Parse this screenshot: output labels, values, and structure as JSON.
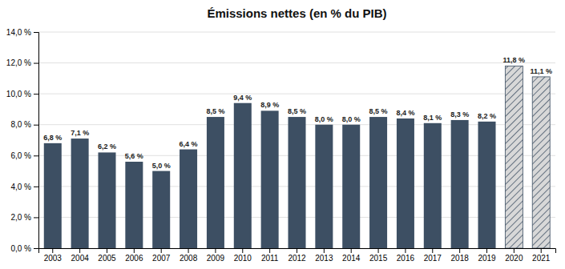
{
  "chart_data": {
    "type": "bar",
    "title": "Émissions nettes (en % du PIB)",
    "categories": [
      "2003",
      "2004",
      "2005",
      "2006",
      "2007",
      "2008",
      "2009",
      "2010",
      "2011",
      "2012",
      "2013",
      "2014",
      "2015",
      "2016",
      "2017",
      "2018",
      "2019",
      "2020",
      "2021"
    ],
    "values": [
      6.8,
      7.1,
      6.2,
      5.6,
      5.0,
      6.4,
      8.5,
      9.4,
      8.9,
      8.5,
      8.0,
      8.0,
      8.5,
      8.4,
      8.1,
      8.3,
      8.2,
      11.8,
      11.1
    ],
    "value_labels": [
      "6,8 %",
      "7,1 %",
      "6,2 %",
      "5,6 %",
      "5,0 %",
      "6,4 %",
      "8,5 %",
      "9,4 %",
      "8,9 %",
      "8,5 %",
      "8,0 %",
      "8,0 %",
      "8,5 %",
      "8,4 %",
      "8,1 %",
      "8,3 %",
      "8,2 %",
      "11,8 %",
      "11,1 %"
    ],
    "data_labels": true,
    "color": "#3d4f63",
    "colors": [
      "#3d4f63",
      "#3d4f63",
      "#3d4f63",
      "#3d4f63",
      "#3d4f63",
      "#3d4f63",
      "#3d4f63",
      "#3d4f63",
      "#3d4f63",
      "#3d4f63",
      "#3d4f63",
      "#3d4f63",
      "#3d4f63",
      "#3d4f63",
      "#3d4f63",
      "#3d4f63",
      "#3d4f63",
      "#d8d8d8",
      "#d8d8d8"
    ],
    "ylim": [
      0,
      14
    ],
    "yticks": [
      {
        "value": 0,
        "label": "0,0 %"
      },
      {
        "value": 2,
        "label": "2,0 %"
      },
      {
        "value": 4,
        "label": "4,0 %"
      },
      {
        "value": 6,
        "label": "6,0 %"
      },
      {
        "value": 8,
        "label": "8,0 %"
      },
      {
        "value": 10,
        "label": "10,0 %"
      },
      {
        "value": 12,
        "label": "12,0 %"
      },
      {
        "value": 14,
        "label": "14,0 %"
      }
    ],
    "grid": true
  }
}
